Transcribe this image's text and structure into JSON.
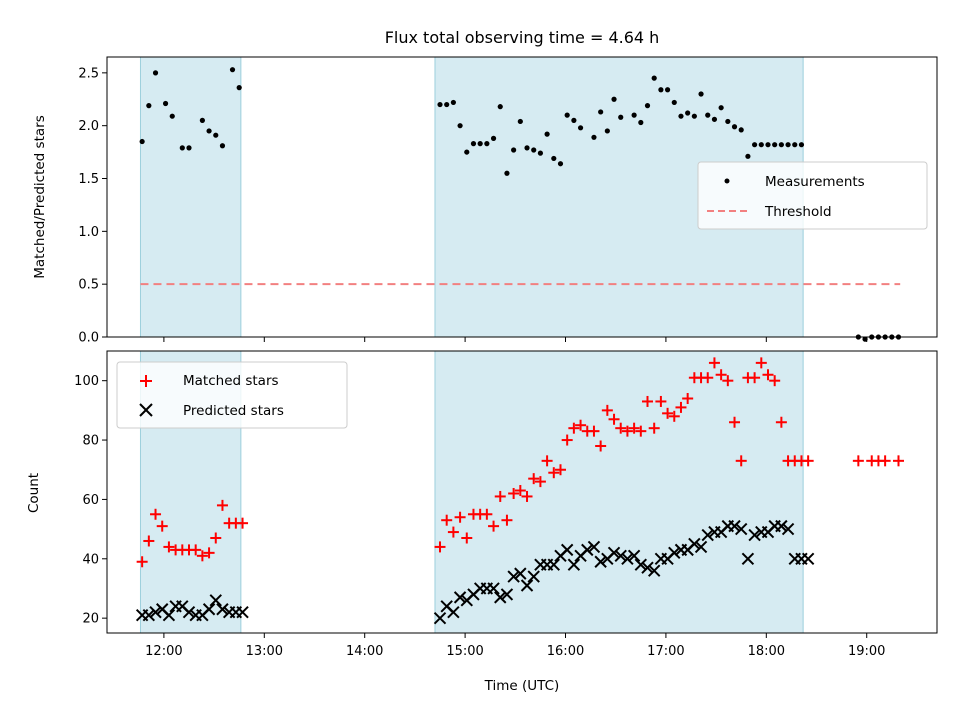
{
  "chart_data": [
    {
      "type": "scatter",
      "title": "Flux total observing time = 4.64 h",
      "xlabel": "",
      "ylabel": "Matched/Predicted stars",
      "xlim": [
        "11:26",
        "19:42"
      ],
      "ylim": [
        0,
        2.65
      ],
      "yticks": [
        "0.0",
        "0.5",
        "1.0",
        "1.5",
        "2.0",
        "2.5"
      ],
      "grid": false,
      "legend_position": "center-right",
      "shaded_intervals": [
        [
          "11:46",
          "12:46"
        ],
        [
          "14:42",
          "18:22"
        ]
      ],
      "threshold": {
        "name": "Threshold",
        "value": 0.5,
        "x_range": [
          "11:46",
          "19:20"
        ],
        "color": "#f28080"
      },
      "series": [
        {
          "name": "Measurements",
          "color": "#000000",
          "x": [
            "11:47",
            "11:51",
            "11:55",
            "12:01",
            "12:05",
            "12:11",
            "12:15",
            "12:23",
            "12:27",
            "12:31",
            "12:35",
            "12:41",
            "12:45",
            "14:45",
            "14:49",
            "14:53",
            "14:57",
            "15:01",
            "15:05",
            "15:09",
            "15:13",
            "15:17",
            "15:21",
            "15:25",
            "15:29",
            "15:33",
            "15:37",
            "15:41",
            "15:45",
            "15:49",
            "15:53",
            "15:57",
            "16:01",
            "16:05",
            "16:09",
            "16:17",
            "16:21",
            "16:25",
            "16:29",
            "16:33",
            "16:41",
            "16:45",
            "16:49",
            "16:53",
            "16:57",
            "17:01",
            "17:05",
            "17:09",
            "17:13",
            "17:17",
            "17:21",
            "17:25",
            "17:29",
            "17:33",
            "17:37",
            "17:41",
            "17:45",
            "17:49",
            "17:53",
            "17:57",
            "18:01",
            "18:05",
            "18:09",
            "18:13",
            "18:17",
            "18:21",
            "18:55",
            "18:59",
            "19:03",
            "19:07",
            "19:11",
            "19:15",
            "19:19"
          ],
          "y": [
            1.85,
            2.19,
            2.5,
            2.21,
            2.09,
            1.79,
            1.79,
            2.05,
            1.95,
            1.91,
            1.81,
            2.53,
            2.36,
            2.2,
            2.2,
            2.22,
            2.0,
            1.75,
            1.83,
            1.83,
            1.83,
            1.88,
            2.18,
            1.55,
            1.77,
            2.04,
            1.79,
            1.77,
            1.74,
            1.92,
            1.69,
            1.64,
            2.1,
            2.05,
            1.98,
            1.89,
            2.13,
            1.95,
            2.25,
            2.08,
            2.1,
            2.03,
            2.19,
            2.45,
            2.34,
            2.34,
            2.22,
            2.09,
            2.12,
            2.09,
            2.3,
            2.1,
            2.06,
            2.17,
            2.04,
            1.99,
            1.96,
            1.71,
            1.82,
            1.82,
            1.82,
            1.82,
            1.82,
            1.82,
            1.82,
            1.82,
            0.0,
            -0.02,
            0.0,
            0.0,
            0.0,
            0.0,
            0.0
          ]
        }
      ]
    },
    {
      "type": "scatter",
      "title": "",
      "xlabel": "Time (UTC)",
      "ylabel": "Count",
      "xlim": [
        "11:26",
        "19:42"
      ],
      "ylim": [
        15,
        110
      ],
      "yticks": [
        "20",
        "40",
        "60",
        "80",
        "100"
      ],
      "xticks": [
        "12:00",
        "13:00",
        "14:00",
        "15:00",
        "16:00",
        "17:00",
        "18:00",
        "19:00"
      ],
      "grid": false,
      "legend_position": "upper-left",
      "shaded_intervals": [
        [
          "11:46",
          "12:46"
        ],
        [
          "14:42",
          "18:22"
        ]
      ],
      "series": [
        {
          "name": "Matched stars",
          "marker": "+",
          "color": "#ff0000",
          "x": [
            "11:47",
            "11:51",
            "11:55",
            "11:59",
            "12:03",
            "12:07",
            "12:11",
            "12:15",
            "12:19",
            "12:23",
            "12:27",
            "12:31",
            "12:35",
            "12:39",
            "12:43",
            "12:47",
            "14:45",
            "14:49",
            "14:53",
            "14:57",
            "15:01",
            "15:05",
            "15:09",
            "15:13",
            "15:17",
            "15:21",
            "15:25",
            "15:29",
            "15:33",
            "15:37",
            "15:41",
            "15:45",
            "15:49",
            "15:53",
            "15:57",
            "16:01",
            "16:05",
            "16:09",
            "16:13",
            "16:17",
            "16:21",
            "16:25",
            "16:29",
            "16:33",
            "16:37",
            "16:41",
            "16:45",
            "16:49",
            "16:53",
            "16:57",
            "17:01",
            "17:05",
            "17:09",
            "17:13",
            "17:17",
            "17:21",
            "17:25",
            "17:29",
            "17:33",
            "17:37",
            "17:41",
            "17:45",
            "17:49",
            "17:53",
            "17:57",
            "18:01",
            "18:05",
            "18:09",
            "18:13",
            "18:17",
            "18:21",
            "18:25",
            "18:55",
            "19:03",
            "19:07",
            "19:11",
            "19:19"
          ],
          "y": [
            39,
            46,
            55,
            51,
            44,
            43,
            43,
            43,
            43,
            41,
            42,
            47,
            58,
            52,
            52,
            52,
            44,
            53,
            49,
            54,
            47,
            55,
            55,
            55,
            51,
            61,
            53,
            62,
            63,
            61,
            67,
            66,
            73,
            69,
            70,
            80,
            84,
            85,
            83,
            83,
            78,
            90,
            87,
            84,
            83,
            84,
            83,
            93,
            84,
            93,
            89,
            88,
            91,
            94,
            101,
            101,
            101,
            106,
            102,
            100,
            86,
            73,
            101,
            101,
            106,
            102,
            100,
            86,
            73,
            73,
            73,
            73,
            73,
            73,
            73,
            73,
            73
          ]
        },
        {
          "name": "Predicted stars",
          "marker": "x",
          "color": "#000000",
          "x": [
            "11:47",
            "11:51",
            "11:55",
            "11:59",
            "12:03",
            "12:07",
            "12:11",
            "12:15",
            "12:19",
            "12:23",
            "12:27",
            "12:31",
            "12:35",
            "12:39",
            "12:43",
            "12:47",
            "14:45",
            "14:49",
            "14:53",
            "14:57",
            "15:01",
            "15:05",
            "15:09",
            "15:13",
            "15:17",
            "15:21",
            "15:25",
            "15:29",
            "15:33",
            "15:37",
            "15:41",
            "15:45",
            "15:49",
            "15:53",
            "15:57",
            "16:01",
            "16:05",
            "16:09",
            "16:13",
            "16:17",
            "16:21",
            "16:25",
            "16:29",
            "16:33",
            "16:37",
            "16:41",
            "16:45",
            "16:49",
            "16:53",
            "16:57",
            "17:01",
            "17:05",
            "17:09",
            "17:13",
            "17:17",
            "17:21",
            "17:25",
            "17:29",
            "17:33",
            "17:37",
            "17:41",
            "17:45",
            "17:49",
            "17:53",
            "17:57",
            "18:01",
            "18:05",
            "18:09",
            "18:13",
            "18:17",
            "18:21",
            "18:25"
          ],
          "y": [
            21,
            21,
            22,
            23,
            21,
            24,
            24,
            22,
            21,
            21,
            23,
            26,
            23,
            22,
            22,
            22,
            20,
            24,
            22,
            27,
            26,
            28,
            30,
            30,
            30,
            27,
            28,
            34,
            35,
            31,
            34,
            38,
            38,
            38,
            41,
            43,
            38,
            41,
            43,
            44,
            39,
            40,
            42,
            41,
            40,
            41,
            38,
            37,
            36,
            40,
            40,
            42,
            43,
            43,
            45,
            44,
            48,
            49,
            49,
            51,
            51,
            50,
            40,
            48,
            49,
            49,
            51,
            51,
            50,
            40,
            40,
            40
          ]
        }
      ]
    }
  ]
}
